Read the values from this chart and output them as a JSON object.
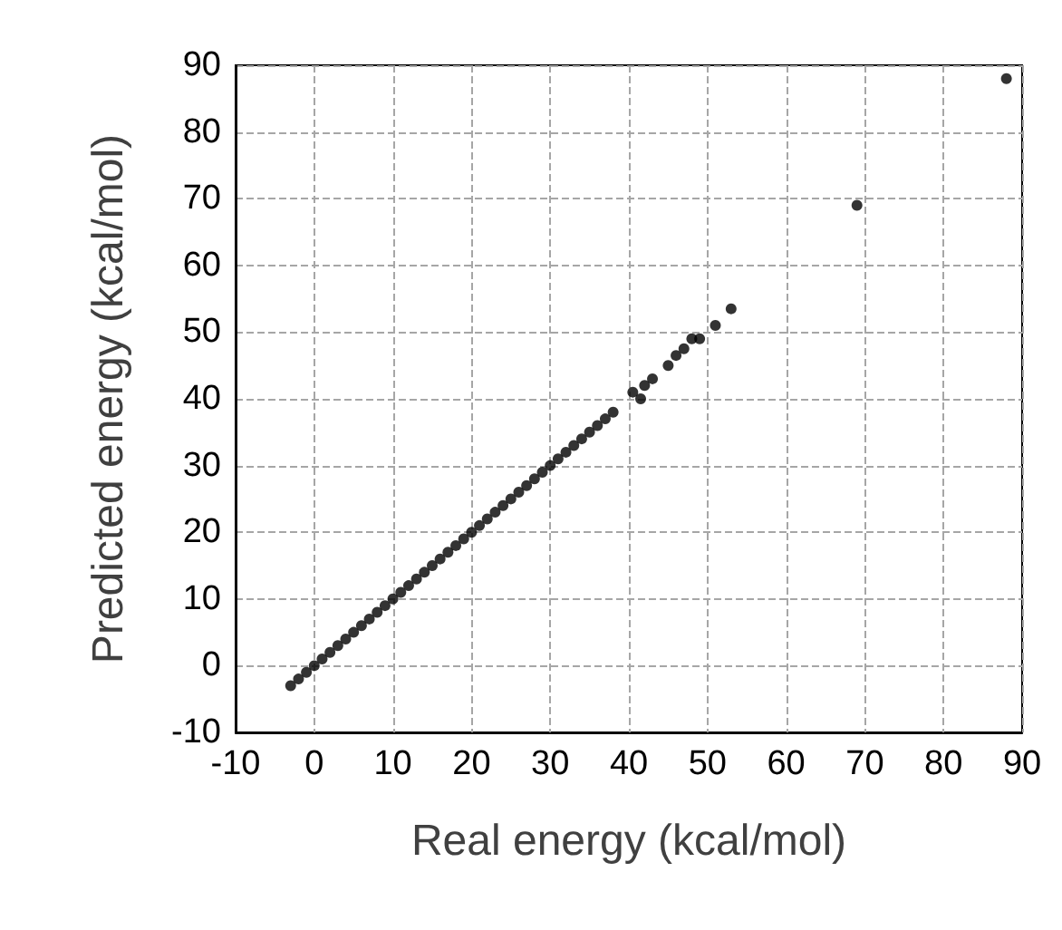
{
  "chart_data": {
    "type": "scatter",
    "xlabel": "Real energy (kcal/mol)",
    "ylabel": "Predicted energy (kcal/mol)",
    "xlim": [
      -10,
      90
    ],
    "ylim": [
      -10,
      90
    ],
    "xticks": [
      -10,
      0,
      10,
      20,
      30,
      40,
      50,
      60,
      70,
      80,
      90
    ],
    "yticks": [
      -10,
      0,
      10,
      20,
      30,
      40,
      50,
      60,
      70,
      80,
      90
    ],
    "grid": true,
    "marker": "circle",
    "series": [
      {
        "color": "#000000",
        "x": [
          -3,
          -2,
          -1,
          0,
          1,
          2,
          3,
          4,
          5,
          6,
          7,
          8,
          9,
          10,
          11,
          12,
          13,
          14,
          15,
          16,
          17,
          18,
          19,
          20,
          21,
          22,
          23,
          24,
          25,
          26,
          27,
          28,
          29,
          30,
          31,
          32,
          33,
          34,
          35,
          36,
          37,
          38,
          40.5,
          41.5,
          42,
          43,
          45,
          46,
          47,
          48,
          49,
          51,
          53,
          69,
          88
        ],
        "values": [
          -3,
          -2,
          -1,
          0,
          1,
          2,
          3,
          4,
          5,
          6,
          7,
          8,
          9,
          10,
          11,
          12,
          13,
          14,
          15,
          16,
          17,
          18,
          19,
          20,
          21,
          22,
          23,
          24,
          25,
          26,
          27,
          28,
          29,
          30,
          31,
          32,
          33,
          34,
          35,
          36,
          37,
          38,
          41,
          40,
          42,
          43,
          45,
          46.5,
          47.5,
          49,
          49,
          51,
          53.5,
          69,
          88
        ]
      }
    ]
  }
}
